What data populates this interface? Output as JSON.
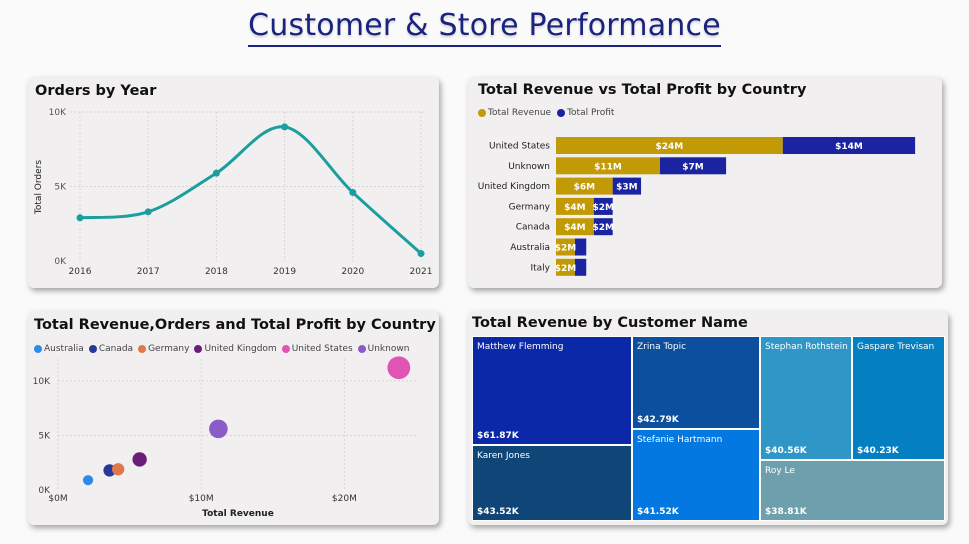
{
  "page": {
    "title": "Customer & Store Performance"
  },
  "orders_card": {
    "title": "Orders by Year",
    "ylabel": "Total Orders",
    "yticks": [
      "10K",
      "5K",
      "0K"
    ],
    "xticks": [
      "2016",
      "2017",
      "2018",
      "2019",
      "2020",
      "2021"
    ]
  },
  "revprofit_card": {
    "title": "Total Revenue vs Total Profit by Country",
    "legend": [
      "Total Revenue",
      "Total Profit"
    ]
  },
  "scatter_card": {
    "title": "Total Revenue,Orders and Total Profit by Country",
    "legend": [
      "Australia",
      "Canada",
      "Germany",
      "United Kingdom",
      "United States",
      "Unknown"
    ],
    "yticks": [
      "10K",
      "5K",
      "0K"
    ],
    "xticks": [
      "$0M",
      "$10M",
      "$20M"
    ],
    "xlabel": "Total Revenue"
  },
  "treemap_card": {
    "title": "Total Revenue by Customer Name"
  },
  "colors": {
    "line": "#1a9e9e",
    "revenue": "#c19a06",
    "profit": "#1a23a0",
    "title": "#1a237e"
  },
  "chart_data": [
    {
      "type": "line",
      "title": "Orders by Year",
      "x": [
        "2016",
        "2017",
        "2018",
        "2019",
        "2020",
        "2021"
      ],
      "series": [
        {
          "values": [
            2900,
            3300,
            5900,
            9000,
            4600,
            500
          ]
        }
      ],
      "ylabel": "Total Orders",
      "ylim": [
        0,
        10000
      ]
    },
    {
      "type": "bar",
      "title": "Total Revenue vs Total Profit by Country",
      "categories": [
        "United States",
        "Unknown",
        "United Kingdom",
        "Germany",
        "Canada",
        "Australia",
        "Italy"
      ],
      "series": [
        {
          "name": "Total Revenue",
          "values": [
            24,
            11,
            6,
            4,
            4,
            2,
            2
          ],
          "labels": [
            "$24M",
            "$11M",
            "$6M",
            "$4M",
            "$4M",
            "$2M",
            "$2M"
          ]
        },
        {
          "name": "Total Profit",
          "values": [
            14,
            7,
            3,
            2,
            2,
            1.2,
            1.2
          ],
          "labels": [
            "$14M",
            "$7M",
            "$3M",
            "$2M",
            "$2M",
            "",
            ""
          ]
        }
      ]
    },
    {
      "type": "scatter",
      "title": "Total Revenue,Orders and Total Profit by Country",
      "xlabel": "Total Revenue",
      "xlim": [
        0,
        25
      ],
      "ylim": [
        0,
        12000
      ],
      "series": [
        {
          "name": "Australia",
          "x": 2.1,
          "y": 900,
          "size": 2,
          "color": "#2e8ce8"
        },
        {
          "name": "Canada",
          "x": 3.6,
          "y": 1800,
          "size": 3,
          "color": "#27389a"
        },
        {
          "name": "Germany",
          "x": 4.2,
          "y": 1900,
          "size": 3,
          "color": "#e0774a"
        },
        {
          "name": "United Kingdom",
          "x": 5.7,
          "y": 2800,
          "size": 4,
          "color": "#6b1d7a"
        },
        {
          "name": "United States",
          "x": 23.8,
          "y": 11200,
          "size": 8,
          "color": "#e055b3"
        },
        {
          "name": "Unknown",
          "x": 11.2,
          "y": 5600,
          "size": 6,
          "color": "#8a5cc9"
        }
      ]
    },
    {
      "type": "treemap",
      "title": "Total Revenue by Customer Name",
      "items": [
        {
          "name": "Matthew Flemming",
          "value": "$61.87K"
        },
        {
          "name": "Karen Jones",
          "value": "$43.52K"
        },
        {
          "name": "Zrina Topic",
          "value": "$42.79K"
        },
        {
          "name": "Stefanie Hartmann",
          "value": "$41.52K"
        },
        {
          "name": "Stephan Rothstein",
          "value": "$40.56K"
        },
        {
          "name": "Gaspare Trevisan",
          "value": "$40.23K"
        },
        {
          "name": "Roy Le",
          "value": "$38.81K"
        }
      ]
    }
  ]
}
